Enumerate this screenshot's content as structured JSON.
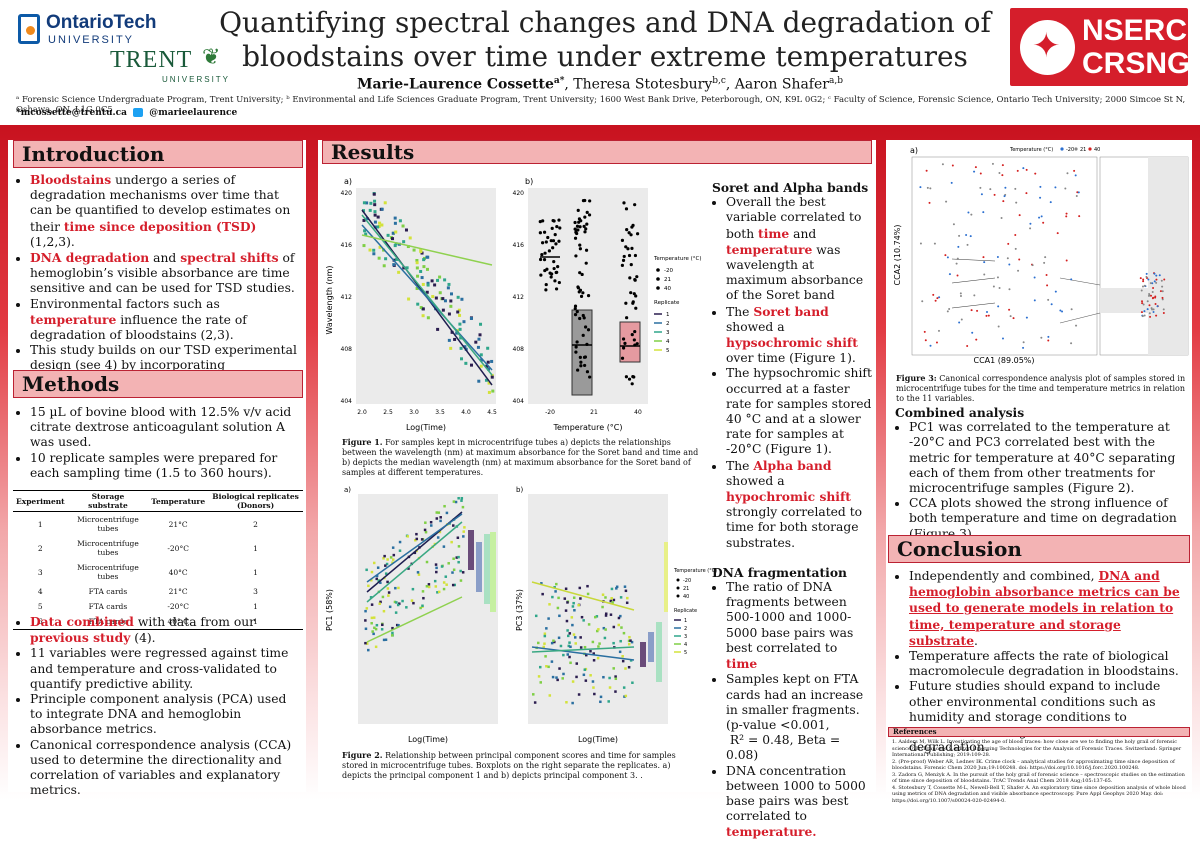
{
  "header": {
    "title_line1": "Quantifying spectral changes and DNA degradation of",
    "title_line2": "bloodstains over time under extreme temperatures",
    "authors": "Marie-Laurence Cossette",
    "authors_sup": "a*",
    "author2": ", Theresa Stotesbury",
    "author2_sup": "b,c",
    "author3": ", Aaron Shafer",
    "author3_sup": "a,b",
    "affiliations": "ᵃ Forensic Science Undergraduate Program, Trent University; ᵇ Environmental and Life Sciences Graduate Program, Trent University; 1600 West Bank Drive, Peterborough, ON, K9L 0G2; ᶜ Faculty of Science, Forensic Science, Ontario Tech University; 2000 Simcoe St N, Oshawa, ON, L1G 0C5",
    "email": "*mcossette@trentu.ca",
    "twitter": "@marieelaurence",
    "logo1_name": "OntarioTech",
    "logo1_sub": "UNIVERSITY",
    "logo2_name": "TRENT",
    "logo2_sub": "UNIVERSITY",
    "nserc1": "NSERC",
    "nserc2": "CRSNG"
  },
  "intro": {
    "heading": "Introduction",
    "b1_red": "Bloodstains",
    "b1_rest": " undergo a series of degradation mechanisms over time that can be quantified to develop estimates on their ",
    "b1_red2": "time since deposition (TSD)",
    "b1_end": " (1,2,3).",
    "b2_red1": "DNA degradation",
    "b2_and": " and ",
    "b2_red2": "spectral shifts",
    "b2_rest": " of hemoglobin’s visible absorbance are time sensitive and can be used for TSD studies.",
    "b3_start": "Environmental factors such as ",
    "b3_red": "temperature",
    "b3_rest": " influence the rate of degradation of bloodstains (2,3).",
    "b4": "This study builds on our TSD experimental design (see 4) by incorporating temperature."
  },
  "methods": {
    "heading": "Methods",
    "b1": "15 µL of bovine blood with 12.5% v/v acid citrate dextrose anticoagulant solution A was used.",
    "b2": "10 replicate samples were prepared for each sampling time (1.5 to 360 hours).",
    "table_headers": [
      "Experiment",
      "Storage substrate",
      "Temperature",
      "Biological replicates (Donors)"
    ],
    "table_rows": [
      [
        "1",
        "Microcentrifuge tubes",
        "21°C",
        "2"
      ],
      [
        "2",
        "Microcentrifuge tubes",
        "-20°C",
        "1"
      ],
      [
        "3",
        "Microcentrifuge tubes",
        "40°C",
        "1"
      ],
      [
        "4",
        "FTA cards",
        "21°C",
        "3"
      ],
      [
        "5",
        "FTA cards",
        "-20°C",
        "1"
      ],
      [
        "6",
        "FTA cards",
        "40° C",
        "1"
      ]
    ],
    "b3_red": "Data combined",
    "b3_mid": " with data from our ",
    "b3_red2": "previous study",
    "b3_end": " (4).",
    "b4": "11 variables were regressed against time and temperature and cross-validated to quantify predictive ability.",
    "b5": "Principle component analysis (PCA) used to integrate DNA and hemoglobin absorbance metrics.",
    "b6": "Canonical correspondence analysis (CCA) used to determine the directionality and correlation of variables and explanatory metrics."
  },
  "results": {
    "heading": "Results",
    "fig1_a": "a)",
    "fig1_b": "b)",
    "fig1_ylabel": "Wavelength (nm)",
    "fig1_xlabel_a": "Log(Time)",
    "fig1_xlabel_b": "Temperature (°C)",
    "fig1_yticks": [
      "420",
      "416",
      "412",
      "408",
      "404"
    ],
    "fig1_xticks_a": [
      "2.0",
      "2.5",
      "3.0",
      "3.5",
      "4.0",
      "4.5"
    ],
    "fig1_xticks_b": [
      "-20",
      "21",
      "40"
    ],
    "legend_temp_title": "Temperature (°C)",
    "legend_temp": [
      "-20",
      "21",
      "40"
    ],
    "legend_rep_title": "Replicate",
    "legend_rep": [
      "1",
      "2",
      "3",
      "4",
      "5"
    ],
    "fig1_cap_bold": "Figure 1.",
    "fig1_cap": " For samples kept in microcentrifuge tubes a) depicts the relationships between the wavelength (nm) at maximum absorbance for the Soret band and time and b) depicts the median wavelength (nm) at maximum absorbance for the Soret band of samples at different temperatures.",
    "fig2_a": "a)",
    "fig2_b": "b)",
    "fig2_ylabel_a": "PC1 (58%)",
    "fig2_ylabel_b": "PC3 (37%)",
    "fig2_xlabel": "Log(Time)",
    "fig2_cap_bold": "Figure 2.",
    "fig2_cap": " Relationship between principal component scores and time for samples stored in microcentrifuge tubes. Boxplots on the right separate the replicates. a) depicts the principal component 1 and b) depicts principal component 3. .",
    "soret_heading": "Soret and Alpha bands",
    "s1_a": "Overall the  best variable correlated to both ",
    "s1_red1": "time",
    "s1_b": " and ",
    "s1_red2": "temperature",
    "s1_c": " was wavelength at maximum absorbance of the Soret band",
    "s2_a": "The ",
    "s2_red": "Soret band",
    "s2_b": " showed a ",
    "s2_red2": "hypsochromic shift",
    "s2_c": " over time (Figure 1).",
    "s3": "The hypsochromic shift occurred at a faster rate for samples stored 40 °C and at a slower rate for samples at      -20°C (Figure 1).",
    "s4_a": "The ",
    "s4_red": "Alpha band",
    "s4_b": " showed a ",
    "s4_red2": "hypochromic shift",
    "s4_c": " strongly correlated to time for both storage substrates.",
    "dna_heading": "DNA fragmentation",
    "d1_a": "The ratio of  DNA fragments between 500-1000 and 1000-5000 base pairs was best correlated to ",
    "d1_red": "time",
    "d2": "Samples kept on FTA cards had an increase in smaller fragments.",
    "d2_stats1": "(p-value <0.001,",
    "d2_stats2": "R² = 0.48, Beta = 0.08)",
    "d3_a": "DNA concentration between 1000 to 5000 base pairs was best correlated to ",
    "d3_red": "temperature."
  },
  "right": {
    "fig3_a": "a)",
    "fig3_legend": "Temperature (°C)",
    "fig3_legend_vals": [
      "-20",
      "21",
      "40"
    ],
    "fig3_xlabel": "CCA1 (89.05%)",
    "fig3_ylabel": "CCA2 (10.74%)",
    "fig3_cap_bold": "Figure 3:",
    "fig3_cap": " Canonical correspondence analysis plot of samples stored in microcentrifuge tubes for the time and temperature  metrics in relation to the 11 variables.",
    "combined_heading": "Combined analysis",
    "c1": "PC1 was correlated to the temperature at -20°C and PC3 correlated best with the metric for temperature at 40°C separating each of them from other treatments for microcentrifuge samples (Figure 2).",
    "c2": "CCA plots showed the strong influence of both temperature and time on degradation (Figure 3).",
    "conclusion_heading": "Conclusion",
    "k1_a": "Independently and combined, ",
    "k1_red": "DNA and hemoglobin absorbance metrics can be used to generate models in relation to time, temperature and storage substrate",
    "k1_end": ".",
    "k2": "Temperature affects the rate of biological macromolecule degradation in bloodstains.",
    "k3": "Future studies should expand to include other environmental conditions such as humidity and storage conditions to determine time signatures of bloodstain degradation.",
    "refs_heading": "References",
    "refs": [
      "1.   Aalders M, Wilk L. Investigating the age of blood traces: how close are we to finding the holy grail of forensic science? In: Francese S, editor. Emerging Technologies for the Analysis of Forensic Traces. Switzerland: Springer International Publishing; 2019:109-28.",
      "2.   (Pre-proof) Weber AR, Lednev IK. Crime clock – analytical studies for approximating time since deposition of bloodstains. Forensic Chem 2020 Jun;19:100248. doi: https://doi.org/10.1016/j.forc.2020.100248.",
      "3.   Zadora G, Menżyk A. In the pursuit of the holy grail of forensic science – spectroscopic studies on the estimation of time since deposition of bloodstains. TrAC Trends Anal Chem 2018 Aug;105:137-65.",
      "4.   Stotesbury T, Cossette M-L, Newell-Bell T, Shafer A. An exploratory time since deposition analysis of whole blood using metrics of DNA degradation and visible absorbance spectroscopy. Pure Appl Geophys 2020 May. doi: https://doi.org/10.1007/s00024-020-02494-0."
    ]
  },
  "colors": {
    "accent": "#d51e2b",
    "header_fill": "#f3b3b4"
  }
}
